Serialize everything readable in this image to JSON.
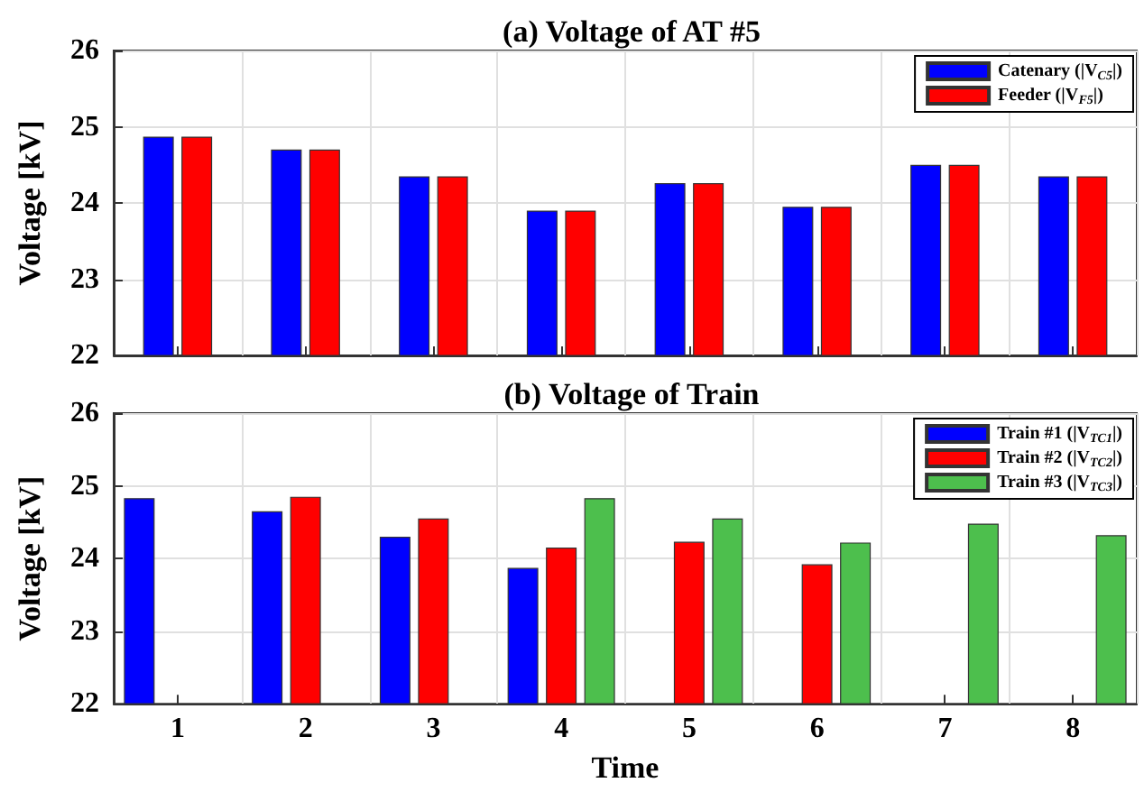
{
  "chart_data": [
    {
      "type": "bar",
      "title": "(a) Voltage of AT #5",
      "ylabel": "Voltage [kV]",
      "categories": [
        "1",
        "2",
        "3",
        "4",
        "5",
        "6",
        "7",
        "8"
      ],
      "tick_labels": "y",
      "ylim": [
        22,
        26
      ],
      "yticks": [
        22,
        23,
        24,
        25,
        26
      ],
      "grid": true,
      "legend": "top right",
      "series": [
        {
          "name": "Catenary (|V$_{C5}$|)",
          "color": "#0000ff",
          "values": [
            24.87,
            24.7,
            24.35,
            23.9,
            24.26,
            23.95,
            24.5,
            24.35
          ]
        },
        {
          "name": "Feeder (|V$_{F5}$|)",
          "color": "#ff0000",
          "values": [
            24.87,
            24.7,
            24.35,
            23.9,
            24.26,
            23.95,
            24.5,
            24.35
          ]
        }
      ]
    },
    {
      "type": "bar",
      "title": "(b) Voltage of Train",
      "xlabel": "Time",
      "ylabel": "Voltage [kV]",
      "categories": [
        "1",
        "2",
        "3",
        "4",
        "5",
        "6",
        "7",
        "8"
      ],
      "ylim": [
        22,
        26
      ],
      "yticks": [
        22,
        23,
        24,
        25,
        26
      ],
      "grid": true,
      "legend": "top right",
      "series": [
        {
          "name": "Train #1 (|V$_{TC1}$|)",
          "color": "#0000ff",
          "values": [
            24.83,
            24.65,
            24.3,
            23.87,
            null,
            null,
            null,
            null
          ]
        },
        {
          "name": "Train #2 (|V$_{TC2}$|)",
          "color": "#ff0000",
          "values": [
            null,
            24.85,
            24.55,
            24.15,
            24.23,
            23.92,
            null,
            null
          ]
        },
        {
          "name": "Train #3 (|V$_{TC3}$|)",
          "color": "#4dbf4d",
          "values": [
            null,
            null,
            null,
            24.83,
            24.55,
            24.22,
            24.48,
            24.32
          ]
        }
      ]
    }
  ]
}
